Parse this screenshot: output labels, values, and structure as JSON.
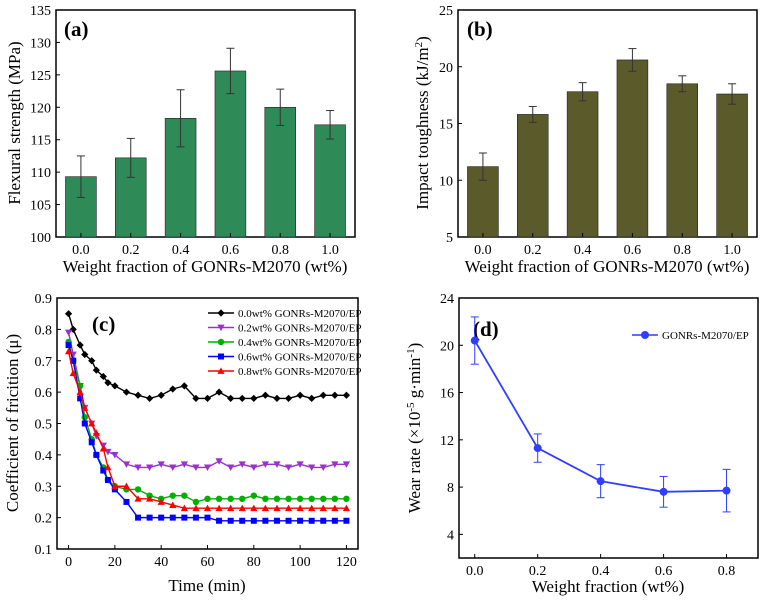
{
  "chart_data": [
    {
      "panel": "(a)",
      "type": "bar",
      "categories": [
        "0.0",
        "0.2",
        "0.4",
        "0.6",
        "0.8",
        "1.0"
      ],
      "values": [
        109.3,
        112.2,
        118.3,
        125.6,
        120.0,
        117.3
      ],
      "errors": [
        3.2,
        3.0,
        4.4,
        3.5,
        2.8,
        2.2
      ],
      "xlabel": "Weight fraction of GONRs-M2070 (wt%)",
      "ylabel": "Flexural strength (MPa)",
      "ylim": [
        100,
        135
      ],
      "yticks": [
        "100",
        "105",
        "110",
        "115",
        "120",
        "125",
        "130",
        "135"
      ],
      "color": "#2e8b57"
    },
    {
      "panel": "(b)",
      "type": "bar",
      "categories": [
        "0.0",
        "0.2",
        "0.4",
        "0.6",
        "0.8",
        "1.0"
      ],
      "values": [
        11.2,
        15.8,
        17.8,
        20.6,
        18.5,
        17.6
      ],
      "errors": [
        1.2,
        0.7,
        0.8,
        1.0,
        0.7,
        0.9
      ],
      "xlabel": "Weight fraction of GONRs-M2070 (wt%)",
      "ylabel": "Impact toughness (kJ/m",
      "ylabel_sup": "2",
      "ylabel_end": ")",
      "ylim": [
        5,
        25
      ],
      "yticks": [
        "5",
        "10",
        "15",
        "20",
        "25"
      ],
      "color": "#5b5a2a"
    },
    {
      "panel": "(c)",
      "type": "line",
      "xlabel": "Time (min)",
      "ylabel": "Coefficient of fricition (μ)",
      "xlim": [
        -5,
        125
      ],
      "ylim": [
        0.1,
        0.9
      ],
      "xticks": [
        "0",
        "20",
        "40",
        "60",
        "80",
        "100",
        "120"
      ],
      "yticks": [
        "0.1",
        "0.2",
        "0.3",
        "0.4",
        "0.5",
        "0.6",
        "0.7",
        "0.8",
        "0.9"
      ],
      "x": [
        0,
        2,
        5,
        7,
        10,
        12,
        15,
        17,
        20,
        25,
        30,
        35,
        40,
        45,
        50,
        55,
        60,
        65,
        70,
        75,
        80,
        85,
        90,
        95,
        100,
        105,
        110,
        115,
        120
      ],
      "series": [
        {
          "name": "0.0wt% GONRs-M2070/EP",
          "color": "#000000",
          "marker": "diamond",
          "values": [
            0.85,
            0.8,
            0.75,
            0.72,
            0.7,
            0.67,
            0.65,
            0.63,
            0.62,
            0.6,
            0.59,
            0.58,
            0.59,
            0.61,
            0.62,
            0.58,
            0.58,
            0.6,
            0.58,
            0.58,
            0.58,
            0.59,
            0.58,
            0.58,
            0.59,
            0.58,
            0.59,
            0.59,
            0.59
          ]
        },
        {
          "name": "0.2wt% GONRs-M2070/EP",
          "color": "#9932cc",
          "marker": "tri-down",
          "values": [
            0.79,
            0.72,
            0.62,
            0.55,
            0.5,
            0.46,
            0.43,
            0.41,
            0.4,
            0.37,
            0.36,
            0.36,
            0.37,
            0.36,
            0.37,
            0.36,
            0.36,
            0.38,
            0.36,
            0.37,
            0.36,
            0.37,
            0.37,
            0.36,
            0.37,
            0.36,
            0.36,
            0.37,
            0.37
          ]
        },
        {
          "name": "0.4wt% GONRs-M2070/EP",
          "color": "#00b000",
          "marker": "circle",
          "values": [
            0.76,
            0.7,
            0.62,
            0.52,
            0.45,
            0.4,
            0.36,
            0.32,
            0.3,
            0.29,
            0.29,
            0.27,
            0.26,
            0.27,
            0.27,
            0.25,
            0.26,
            0.26,
            0.26,
            0.26,
            0.27,
            0.26,
            0.26,
            0.26,
            0.26,
            0.26,
            0.26,
            0.26,
            0.26
          ]
        },
        {
          "name": "0.6wt% GONRs-M2070/EP",
          "color": "#0000ff",
          "marker": "square",
          "values": [
            0.75,
            0.7,
            0.58,
            0.5,
            0.44,
            0.4,
            0.35,
            0.32,
            0.29,
            0.25,
            0.2,
            0.2,
            0.2,
            0.2,
            0.2,
            0.2,
            0.2,
            0.19,
            0.19,
            0.19,
            0.19,
            0.19,
            0.19,
            0.19,
            0.19,
            0.19,
            0.19,
            0.19,
            0.19
          ]
        },
        {
          "name": "0.8wt% GONRs-M2070/EP",
          "color": "#ff0000",
          "marker": "tri-up",
          "values": [
            0.73,
            0.66,
            0.6,
            0.55,
            0.5,
            0.47,
            0.42,
            0.36,
            0.3,
            0.3,
            0.26,
            0.26,
            0.25,
            0.24,
            0.23,
            0.23,
            0.23,
            0.23,
            0.23,
            0.23,
            0.23,
            0.23,
            0.23,
            0.23,
            0.23,
            0.23,
            0.23,
            0.23,
            0.23
          ]
        }
      ]
    },
    {
      "panel": "(d)",
      "type": "line",
      "xlabel": "Weight fraction (wt%)",
      "ylabel": "Wear rate (×10",
      "ylabel_sup": "-5",
      "ylabel_mid": " g·min",
      "ylabel_sup2": "-1",
      "ylabel_end": ")",
      "xlim": [
        -0.05,
        0.9
      ],
      "ylim": [
        2,
        24
      ],
      "xticks": [
        "0.0",
        "0.2",
        "0.4",
        "0.6",
        "0.8"
      ],
      "yticks": [
        "4",
        "8",
        "12",
        "16",
        "20",
        "24"
      ],
      "series": [
        {
          "name": "GONRs-M2070/EP",
          "color": "#2f3fff",
          "x": [
            0.0,
            0.2,
            0.4,
            0.6,
            0.8
          ],
          "values": [
            20.4,
            11.3,
            8.5,
            7.6,
            7.7
          ],
          "errors": [
            2.0,
            1.2,
            1.4,
            1.3,
            1.8
          ]
        }
      ]
    }
  ]
}
